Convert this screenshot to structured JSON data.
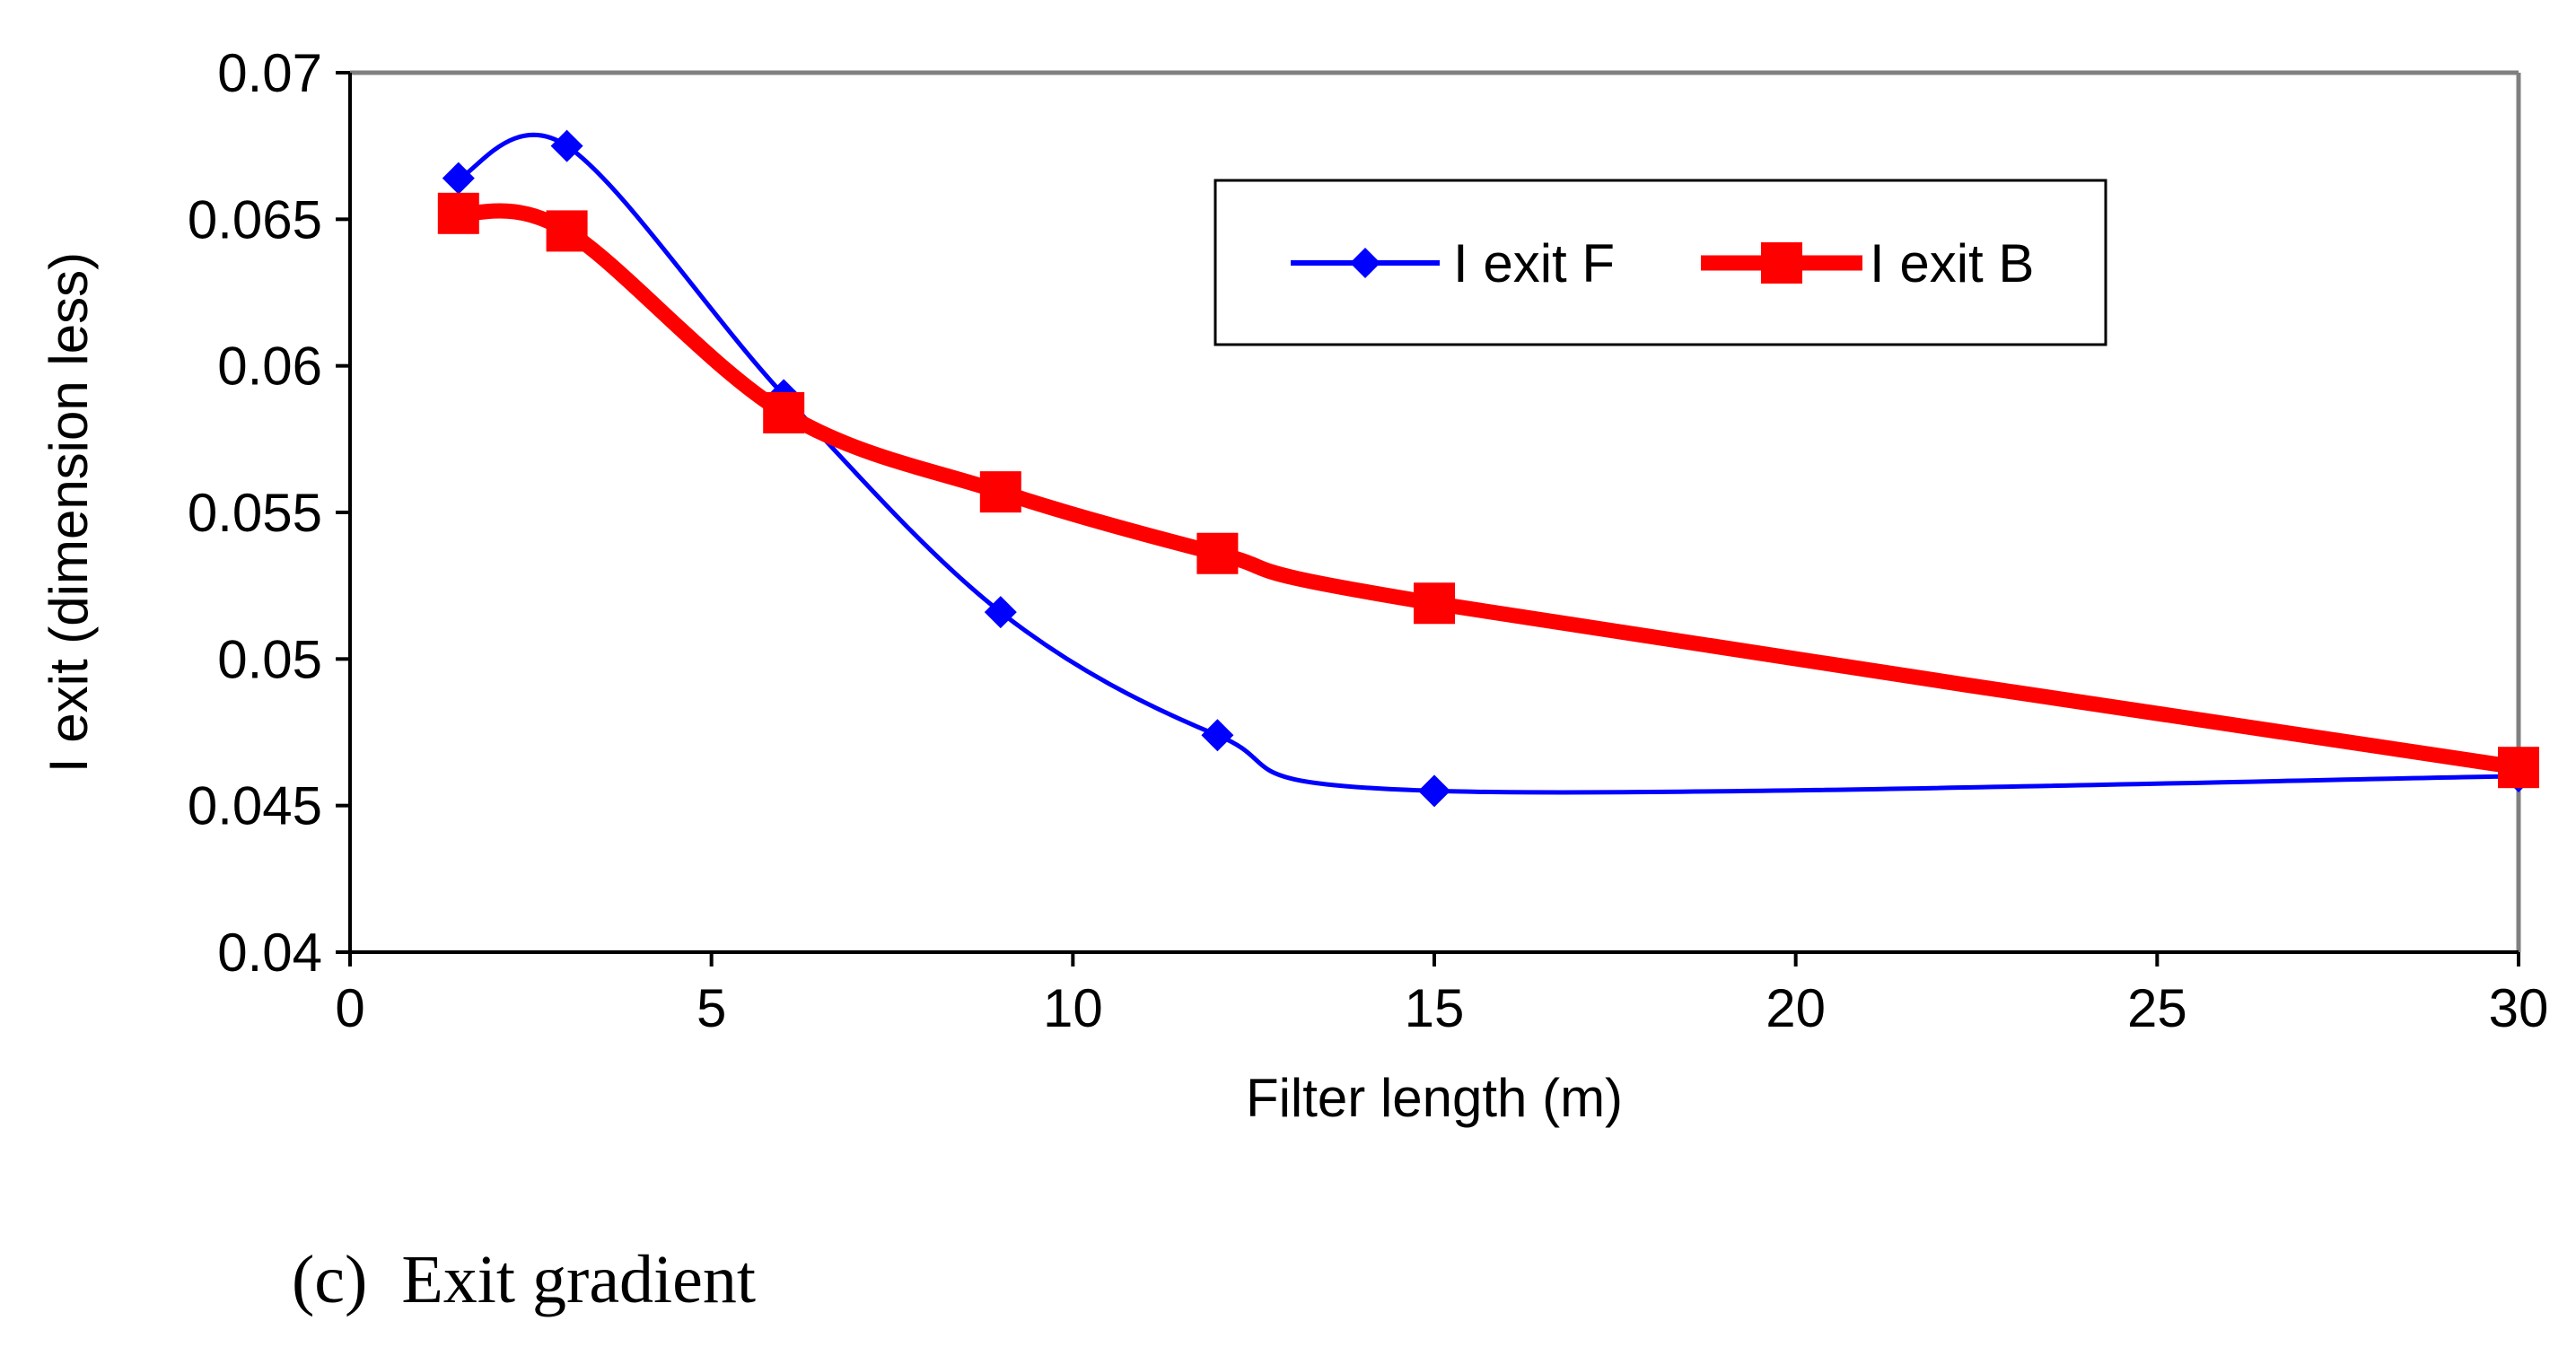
{
  "chart_data": {
    "type": "line",
    "title": "",
    "xlabel": "Filter length (m)",
    "ylabel": "I exit (dimension less)",
    "xlim": [
      0,
      30
    ],
    "ylim": [
      0.04,
      0.07
    ],
    "xticks": [
      0,
      5,
      10,
      15,
      20,
      25,
      30
    ],
    "xtick_labels": [
      "0",
      "5",
      "10",
      "15",
      "20",
      "25",
      "30"
    ],
    "yticks": [
      0.04,
      0.045,
      0.05,
      0.055,
      0.06,
      0.065,
      0.07
    ],
    "ytick_labels": [
      "0.04",
      "0.045",
      "0.05",
      "0.055",
      "0.06",
      "0.065",
      "0.07"
    ],
    "grid": false,
    "legend_position": "top-right",
    "series": [
      {
        "name": "I exit F",
        "color": "#0000ff",
        "marker": "diamond",
        "smooth": true,
        "x": [
          1.5,
          3,
          6,
          9,
          12,
          15,
          30
        ],
        "y": [
          0.0664,
          0.0675,
          0.059,
          0.0516,
          0.0474,
          0.0455,
          0.046
        ]
      },
      {
        "name": "I exit B",
        "color": "#ff0000",
        "marker": "square",
        "smooth": true,
        "x": [
          1.5,
          3,
          6,
          9,
          12,
          15,
          30
        ],
        "y": [
          0.0652,
          0.0646,
          0.0584,
          0.0557,
          0.0536,
          0.0519,
          0.0463
        ]
      }
    ]
  },
  "caption": "(c)  Exit gradient"
}
